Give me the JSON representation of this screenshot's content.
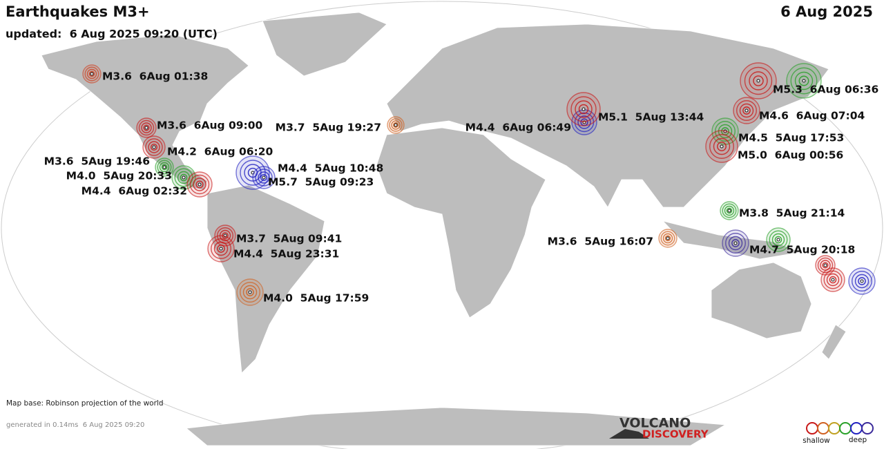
{
  "header": {
    "title": "Earthquakes M3+",
    "date": "6 Aug 2025",
    "updated": "updated:  6 Aug 2025 09:20 (UTC)"
  },
  "quakes": [
    {
      "label": "M3.6  6Aug 01:38",
      "color": "#d04020"
    },
    {
      "label": "M3.6  6Aug 09:00",
      "color": "#c81818"
    },
    {
      "label": "M4.2  6Aug 06:20",
      "color": "#c81818"
    },
    {
      "label": "M3.6  5Aug 19:46",
      "color": "#28a028"
    },
    {
      "label": "M4.0  5Aug 20:33",
      "color": "#28a028"
    },
    {
      "label": "M4.4  6Aug 02:32",
      "color": "#c81818"
    },
    {
      "label": "M4.4  5Aug 10:48",
      "color": "#2020c0"
    },
    {
      "label": "M5.7  5Aug 09:23",
      "color": "#2020c0"
    },
    {
      "label": "M3.7  5Aug 19:27",
      "color": "#d06020"
    },
    {
      "label": "M4.4  6Aug 06:49",
      "color": "#2020c0"
    },
    {
      "label": "M5.1  5Aug 13:44",
      "color": "#c81818"
    },
    {
      "label": "M5.3  6Aug 06:36",
      "color": "#28a028"
    },
    {
      "label": "M4.6  6Aug 07:04",
      "color": "#c81818"
    },
    {
      "label": "M4.5  5Aug 17:53",
      "color": "#28a028"
    },
    {
      "label": "M5.0  6Aug 00:56",
      "color": "#c81818"
    },
    {
      "label": "M3.8  5Aug 21:14",
      "color": "#28a028"
    },
    {
      "label": "M3.6  5Aug 16:07",
      "color": "#d06020"
    },
    {
      "label": "M4.7  5Aug 20:18",
      "color": "#3a2a9a"
    },
    {
      "label": "M3.7  5Aug 09:41",
      "color": "#c81818"
    },
    {
      "label": "M4.4  5Aug 23:31",
      "color": "#c81818"
    },
    {
      "label": "M4.0  5Aug 17:59",
      "color": "#d06020"
    }
  ],
  "footer": {
    "map_base": "Map base: Robinson projection of the world",
    "generated": "generated in 0.14ms  6 Aug 2025 09:20"
  },
  "logo": {
    "line1": "VOLCANO",
    "line2": "DISCOVERY"
  },
  "legend": {
    "shallow": "shallow",
    "deep": "deep"
  }
}
